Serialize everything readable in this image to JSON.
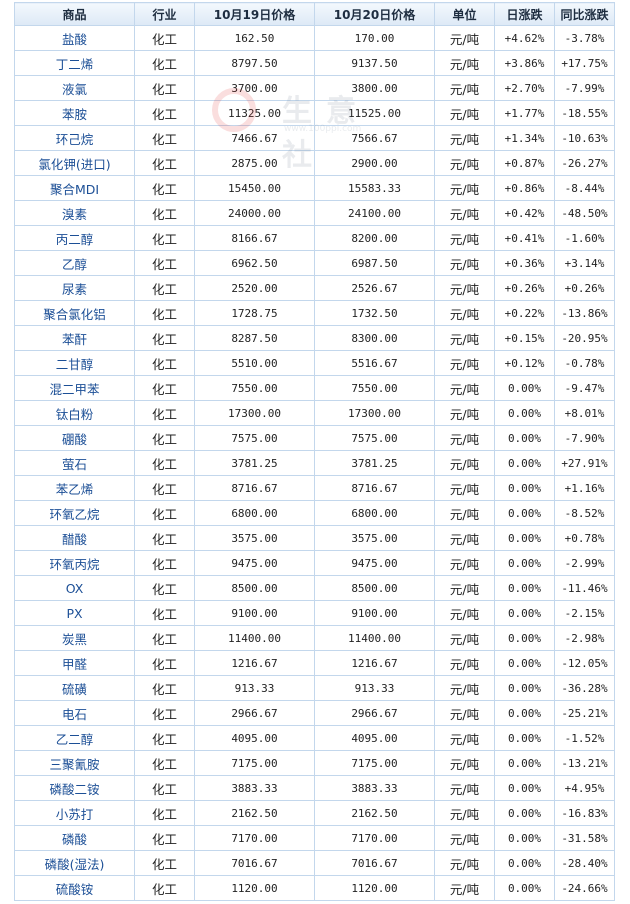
{
  "table": {
    "headers": [
      "商品",
      "行业",
      "10月19日价格",
      "10月20日价格",
      "单位",
      "日涨跌",
      "同比涨跌"
    ],
    "rows": [
      {
        "name": "盐酸",
        "industry": "化工",
        "p1": "162.50",
        "p2": "170.00",
        "unit": "元/吨",
        "day": "+4.62%",
        "yoy": "-3.78%"
      },
      {
        "name": "丁二烯",
        "industry": "化工",
        "p1": "8797.50",
        "p2": "9137.50",
        "unit": "元/吨",
        "day": "+3.86%",
        "yoy": "+17.75%"
      },
      {
        "name": "液氯",
        "industry": "化工",
        "p1": "3700.00",
        "p2": "3800.00",
        "unit": "元/吨",
        "day": "+2.70%",
        "yoy": "-7.99%"
      },
      {
        "name": "苯胺",
        "industry": "化工",
        "p1": "11325.00",
        "p2": "11525.00",
        "unit": "元/吨",
        "day": "+1.77%",
        "yoy": "-18.55%"
      },
      {
        "name": "环己烷",
        "industry": "化工",
        "p1": "7466.67",
        "p2": "7566.67",
        "unit": "元/吨",
        "day": "+1.34%",
        "yoy": "-10.63%"
      },
      {
        "name": "氯化钾(进口)",
        "industry": "化工",
        "p1": "2875.00",
        "p2": "2900.00",
        "unit": "元/吨",
        "day": "+0.87%",
        "yoy": "-26.27%"
      },
      {
        "name": "聚合MDI",
        "industry": "化工",
        "p1": "15450.00",
        "p2": "15583.33",
        "unit": "元/吨",
        "day": "+0.86%",
        "yoy": "-8.44%"
      },
      {
        "name": "溴素",
        "industry": "化工",
        "p1": "24000.00",
        "p2": "24100.00",
        "unit": "元/吨",
        "day": "+0.42%",
        "yoy": "-48.50%"
      },
      {
        "name": "丙二醇",
        "industry": "化工",
        "p1": "8166.67",
        "p2": "8200.00",
        "unit": "元/吨",
        "day": "+0.41%",
        "yoy": "-1.60%"
      },
      {
        "name": "乙醇",
        "industry": "化工",
        "p1": "6962.50",
        "p2": "6987.50",
        "unit": "元/吨",
        "day": "+0.36%",
        "yoy": "+3.14%"
      },
      {
        "name": "尿素",
        "industry": "化工",
        "p1": "2520.00",
        "p2": "2526.67",
        "unit": "元/吨",
        "day": "+0.26%",
        "yoy": "+0.26%"
      },
      {
        "name": "聚合氯化铝",
        "industry": "化工",
        "p1": "1728.75",
        "p2": "1732.50",
        "unit": "元/吨",
        "day": "+0.22%",
        "yoy": "-13.86%"
      },
      {
        "name": "苯酐",
        "industry": "化工",
        "p1": "8287.50",
        "p2": "8300.00",
        "unit": "元/吨",
        "day": "+0.15%",
        "yoy": "-20.95%"
      },
      {
        "name": "二甘醇",
        "industry": "化工",
        "p1": "5510.00",
        "p2": "5516.67",
        "unit": "元/吨",
        "day": "+0.12%",
        "yoy": "-0.78%"
      },
      {
        "name": "混二甲苯",
        "industry": "化工",
        "p1": "7550.00",
        "p2": "7550.00",
        "unit": "元/吨",
        "day": "0.00%",
        "yoy": "-9.47%"
      },
      {
        "name": "钛白粉",
        "industry": "化工",
        "p1": "17300.00",
        "p2": "17300.00",
        "unit": "元/吨",
        "day": "0.00%",
        "yoy": "+8.01%"
      },
      {
        "name": "硼酸",
        "industry": "化工",
        "p1": "7575.00",
        "p2": "7575.00",
        "unit": "元/吨",
        "day": "0.00%",
        "yoy": "-7.90%"
      },
      {
        "name": "萤石",
        "industry": "化工",
        "p1": "3781.25",
        "p2": "3781.25",
        "unit": "元/吨",
        "day": "0.00%",
        "yoy": "+27.91%"
      },
      {
        "name": "苯乙烯",
        "industry": "化工",
        "p1": "8716.67",
        "p2": "8716.67",
        "unit": "元/吨",
        "day": "0.00%",
        "yoy": "+1.16%"
      },
      {
        "name": "环氧乙烷",
        "industry": "化工",
        "p1": "6800.00",
        "p2": "6800.00",
        "unit": "元/吨",
        "day": "0.00%",
        "yoy": "-8.52%"
      },
      {
        "name": "醋酸",
        "industry": "化工",
        "p1": "3575.00",
        "p2": "3575.00",
        "unit": "元/吨",
        "day": "0.00%",
        "yoy": "+0.78%"
      },
      {
        "name": "环氧丙烷",
        "industry": "化工",
        "p1": "9475.00",
        "p2": "9475.00",
        "unit": "元/吨",
        "day": "0.00%",
        "yoy": "-2.99%"
      },
      {
        "name": "OX",
        "industry": "化工",
        "p1": "8500.00",
        "p2": "8500.00",
        "unit": "元/吨",
        "day": "0.00%",
        "yoy": "-11.46%"
      },
      {
        "name": "PX",
        "industry": "化工",
        "p1": "9100.00",
        "p2": "9100.00",
        "unit": "元/吨",
        "day": "0.00%",
        "yoy": "-2.15%"
      },
      {
        "name": "炭黑",
        "industry": "化工",
        "p1": "11400.00",
        "p2": "11400.00",
        "unit": "元/吨",
        "day": "0.00%",
        "yoy": "-2.98%"
      },
      {
        "name": "甲醛",
        "industry": "化工",
        "p1": "1216.67",
        "p2": "1216.67",
        "unit": "元/吨",
        "day": "0.00%",
        "yoy": "-12.05%"
      },
      {
        "name": "硫磺",
        "industry": "化工",
        "p1": "913.33",
        "p2": "913.33",
        "unit": "元/吨",
        "day": "0.00%",
        "yoy": "-36.28%"
      },
      {
        "name": "电石",
        "industry": "化工",
        "p1": "2966.67",
        "p2": "2966.67",
        "unit": "元/吨",
        "day": "0.00%",
        "yoy": "-25.21%"
      },
      {
        "name": "乙二醇",
        "industry": "化工",
        "p1": "4095.00",
        "p2": "4095.00",
        "unit": "元/吨",
        "day": "0.00%",
        "yoy": "-1.52%"
      },
      {
        "name": "三聚氰胺",
        "industry": "化工",
        "p1": "7175.00",
        "p2": "7175.00",
        "unit": "元/吨",
        "day": "0.00%",
        "yoy": "-13.21%"
      },
      {
        "name": "磷酸二铵",
        "industry": "化工",
        "p1": "3883.33",
        "p2": "3883.33",
        "unit": "元/吨",
        "day": "0.00%",
        "yoy": "+4.95%"
      },
      {
        "name": "小苏打",
        "industry": "化工",
        "p1": "2162.50",
        "p2": "2162.50",
        "unit": "元/吨",
        "day": "0.00%",
        "yoy": "-16.83%"
      },
      {
        "name": "磷酸",
        "industry": "化工",
        "p1": "7170.00",
        "p2": "7170.00",
        "unit": "元/吨",
        "day": "0.00%",
        "yoy": "-31.58%"
      },
      {
        "name": "磷酸(湿法)",
        "industry": "化工",
        "p1": "7016.67",
        "p2": "7016.67",
        "unit": "元/吨",
        "day": "0.00%",
        "yoy": "-28.40%"
      },
      {
        "name": "硫酸铵",
        "industry": "化工",
        "p1": "1120.00",
        "p2": "1120.00",
        "unit": "元/吨",
        "day": "0.00%",
        "yoy": "-24.66%"
      }
    ]
  },
  "watermark": {
    "text": "生意社",
    "url": "www.100ppi.com"
  },
  "colors": {
    "up": "#e0262a",
    "down": "#13a13c",
    "name_link": "#1c4f96",
    "border": "#c3d7ec"
  }
}
